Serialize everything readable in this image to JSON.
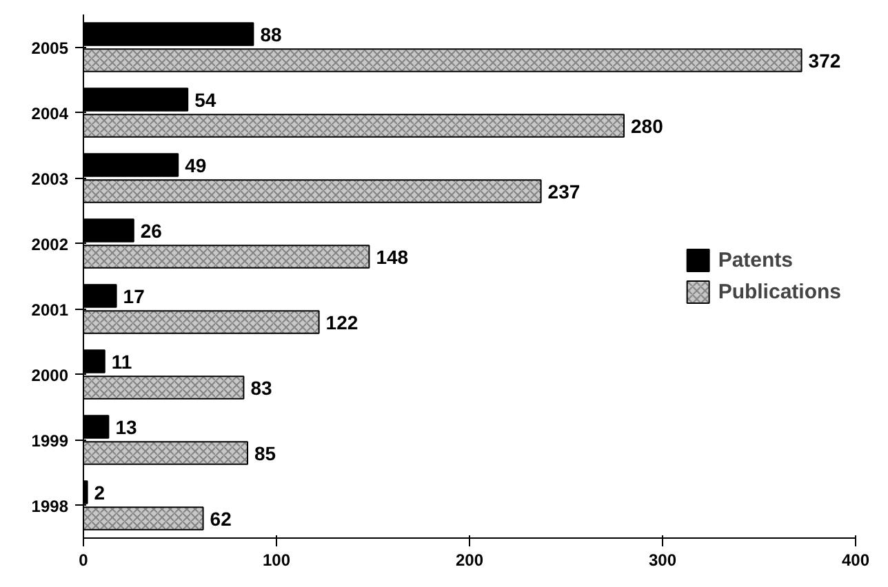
{
  "chart_data": {
    "type": "bar",
    "orientation": "horizontal",
    "categories": [
      "2005",
      "2004",
      "2003",
      "2002",
      "2001",
      "2000",
      "1999",
      "1998"
    ],
    "series": [
      {
        "name": "Patents",
        "color": "#000000",
        "values": [
          88,
          54,
          49,
          26,
          17,
          11,
          13,
          2
        ]
      },
      {
        "name": "Publications",
        "color": "#c8c8c8",
        "values": [
          372,
          280,
          237,
          148,
          122,
          83,
          85,
          62
        ]
      }
    ],
    "xlim": [
      0,
      400
    ],
    "xticks": [
      0,
      100,
      200,
      300,
      400
    ],
    "data_labels": true,
    "legend": "right",
    "grid": false
  }
}
